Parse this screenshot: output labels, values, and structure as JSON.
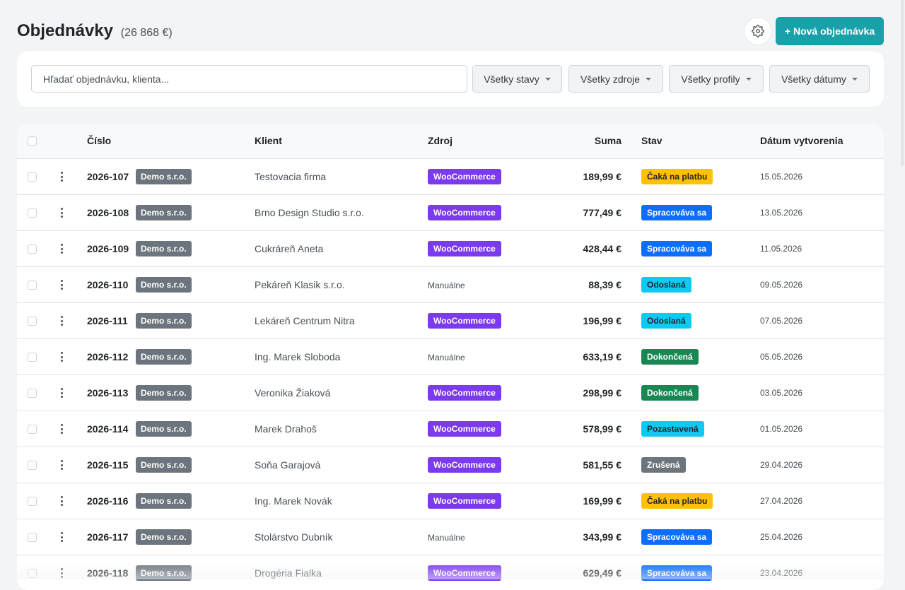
{
  "header": {
    "title": "Objednávky",
    "total": "(26 868 €)",
    "new_order_label": "+ Nová objednávka"
  },
  "filters": {
    "search_placeholder": "Hľadať objednávku, klienta...",
    "status": "Všetky stavy",
    "source": "Všetky zdroje",
    "profile": "Všetky profily",
    "date": "Všetky dátumy"
  },
  "table": {
    "headers": {
      "number": "Číslo",
      "client": "Klient",
      "source": "Zdroj",
      "sum": "Suma",
      "status": "Stav",
      "created": "Dátum vytvorenia"
    },
    "rows": [
      {
        "number": "2026-107",
        "company": "Demo s.r.o.",
        "client": "Testovacia firma",
        "source": "WooCommerce",
        "sum": "189,99 €",
        "status": "Čaká na platbu",
        "status_type": "waiting",
        "date": "15.05.2026"
      },
      {
        "number": "2026-108",
        "company": "Demo s.r.o.",
        "client": "Brno Design Studio s.r.o.",
        "source": "WooCommerce",
        "sum": "777,49 €",
        "status": "Spracováva sa",
        "status_type": "processing",
        "date": "13.05.2026"
      },
      {
        "number": "2026-109",
        "company": "Demo s.r.o.",
        "client": "Cukráreň Aneta",
        "source": "WooCommerce",
        "sum": "428,44 €",
        "status": "Spracováva sa",
        "status_type": "processing",
        "date": "11.05.2026"
      },
      {
        "number": "2026-110",
        "company": "Demo s.r.o.",
        "client": "Pekáreň Klasik s.r.o.",
        "source": "Manuálne",
        "sum": "88,39 €",
        "status": "Odoslaná",
        "status_type": "sent",
        "date": "09.05.2026"
      },
      {
        "number": "2026-111",
        "company": "Demo s.r.o.",
        "client": "Lekáreň Centrum Nitra",
        "source": "WooCommerce",
        "sum": "196,99 €",
        "status": "Odoslaná",
        "status_type": "sent",
        "date": "07.05.2026"
      },
      {
        "number": "2026-112",
        "company": "Demo s.r.o.",
        "client": "Ing. Marek Sloboda",
        "source": "Manuálne",
        "sum": "633,19 €",
        "status": "Dokončená",
        "status_type": "done",
        "date": "05.05.2026"
      },
      {
        "number": "2026-113",
        "company": "Demo s.r.o.",
        "client": "Veronika Žiaková",
        "source": "WooCommerce",
        "sum": "298,99 €",
        "status": "Dokončená",
        "status_type": "done",
        "date": "03.05.2026"
      },
      {
        "number": "2026-114",
        "company": "Demo s.r.o.",
        "client": "Marek Drahoš",
        "source": "WooCommerce",
        "sum": "578,99 €",
        "status": "Pozastavená",
        "status_type": "paused",
        "date": "01.05.2026"
      },
      {
        "number": "2026-115",
        "company": "Demo s.r.o.",
        "client": "Soňa Garajová",
        "source": "WooCommerce",
        "sum": "581,55 €",
        "status": "Zrušená",
        "status_type": "cancelled",
        "date": "29.04.2026"
      },
      {
        "number": "2026-116",
        "company": "Demo s.r.o.",
        "client": "Ing. Marek Novák",
        "source": "WooCommerce",
        "sum": "169,99 €",
        "status": "Čaká na platbu",
        "status_type": "waiting",
        "date": "27.04.2026"
      },
      {
        "number": "2026-117",
        "company": "Demo s.r.o.",
        "client": "Stolárstvo Dubník",
        "source": "Manuálne",
        "sum": "343,99 €",
        "status": "Spracováva sa",
        "status_type": "processing",
        "date": "25.04.2026"
      },
      {
        "number": "2026-118",
        "company": "Demo s.r.o.",
        "client": "Drogéria Fialka",
        "source": "WooCommerce",
        "sum": "629,49 €",
        "status": "Spracováva sa",
        "status_type": "processing",
        "date": "23.04.2026"
      }
    ]
  },
  "colors": {
    "accent": "#1aa0a8",
    "woocommerce": "#7c3aed",
    "company_badge": "#6c757d",
    "status": {
      "waiting": {
        "bg": "#ffc107",
        "fg": "#212529"
      },
      "processing": {
        "bg": "#0d6efd",
        "fg": "#ffffff"
      },
      "sent": {
        "bg": "#0dcaf0",
        "fg": "#212529"
      },
      "done": {
        "bg": "#198754",
        "fg": "#ffffff"
      },
      "paused": {
        "bg": "#0dcaf0",
        "fg": "#212529"
      },
      "cancelled": {
        "bg": "#6c757d",
        "fg": "#ffffff"
      }
    }
  },
  "icons": {
    "settings": "gear-icon",
    "row_menu": "kebab-icon",
    "dropdown": "caret-down-icon"
  }
}
